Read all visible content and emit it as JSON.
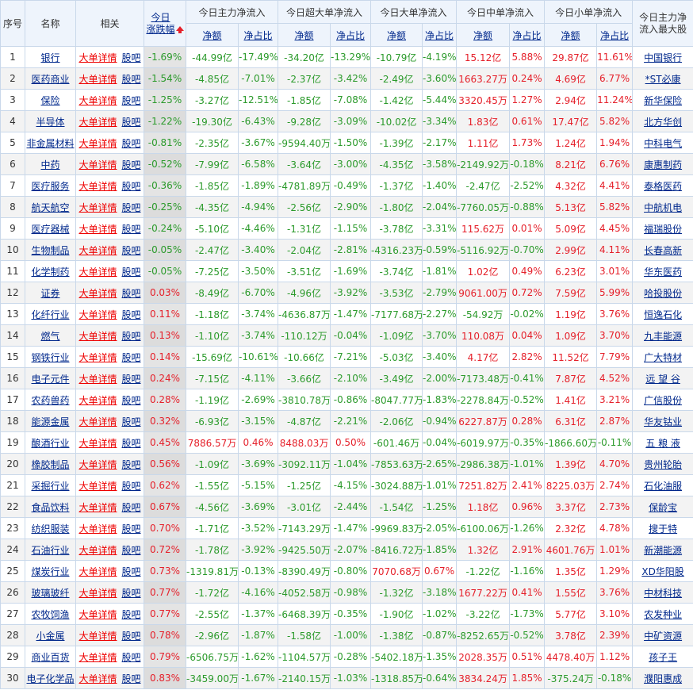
{
  "header": {
    "index": "序号",
    "name": "名称",
    "related": "相关",
    "change_line1": "今日",
    "change_line2": "涨跌幅",
    "sort_icon": "red-up-arrow-icon",
    "groups": [
      "今日主力净流入",
      "今日超大单净流入",
      "今日大单净流入",
      "今日中单净流入",
      "今日小单净流入"
    ],
    "top_stock_line1": "今日主力净",
    "top_stock_line2": "流入最大股",
    "sub_amount": "净额",
    "sub_ratio": "净占比"
  },
  "links": {
    "detail": "大单详情",
    "guba": "股吧"
  },
  "colors": {
    "up": "#e5202a",
    "down": "#2b9a2b",
    "link": "#00288c",
    "border": "#c9d8ea",
    "header_bg": "#eef4fc"
  },
  "rows": [
    {
      "idx": "1",
      "name": "银行",
      "chg": "-1.69%",
      "main": "-44.99亿",
      "main_r": "-17.49%",
      "xl": "-34.20亿",
      "xl_r": "-13.29%",
      "l": "-10.79亿",
      "l_r": "-4.19%",
      "m": "15.12亿",
      "m_r": "5.88%",
      "s": "29.87亿",
      "s_r": "11.61%",
      "top": "中国银行"
    },
    {
      "idx": "2",
      "name": "医药商业",
      "chg": "-1.54%",
      "main": "-4.85亿",
      "main_r": "-7.01%",
      "xl": "-2.37亿",
      "xl_r": "-3.42%",
      "l": "-2.49亿",
      "l_r": "-3.60%",
      "m": "1663.27万",
      "m_r": "0.24%",
      "s": "4.69亿",
      "s_r": "6.77%",
      "top": "*ST必康"
    },
    {
      "idx": "3",
      "name": "保险",
      "chg": "-1.25%",
      "main": "-3.27亿",
      "main_r": "-12.51%",
      "xl": "-1.85亿",
      "xl_r": "-7.08%",
      "l": "-1.42亿",
      "l_r": "-5.44%",
      "m": "3320.45万",
      "m_r": "1.27%",
      "s": "2.94亿",
      "s_r": "11.24%",
      "top": "新华保险"
    },
    {
      "idx": "4",
      "name": "半导体",
      "chg": "-1.22%",
      "main": "-19.30亿",
      "main_r": "-6.43%",
      "xl": "-9.28亿",
      "xl_r": "-3.09%",
      "l": "-10.02亿",
      "l_r": "-3.34%",
      "m": "1.83亿",
      "m_r": "0.61%",
      "s": "17.47亿",
      "s_r": "5.82%",
      "top": "北方华创"
    },
    {
      "idx": "5",
      "name": "非金属材料",
      "chg": "-0.81%",
      "main": "-2.35亿",
      "main_r": "-3.67%",
      "xl": "-9594.40万",
      "xl_r": "-1.50%",
      "l": "-1.39亿",
      "l_r": "-2.17%",
      "m": "1.11亿",
      "m_r": "1.73%",
      "s": "1.24亿",
      "s_r": "1.94%",
      "top": "中科电气"
    },
    {
      "idx": "6",
      "name": "中药",
      "chg": "-0.52%",
      "main": "-7.99亿",
      "main_r": "-6.58%",
      "xl": "-3.64亿",
      "xl_r": "-3.00%",
      "l": "-4.35亿",
      "l_r": "-3.58%",
      "m": "-2149.92万",
      "m_r": "-0.18%",
      "s": "8.21亿",
      "s_r": "6.76%",
      "top": "康惠制药"
    },
    {
      "idx": "7",
      "name": "医疗服务",
      "chg": "-0.36%",
      "main": "-1.85亿",
      "main_r": "-1.89%",
      "xl": "-4781.89万",
      "xl_r": "-0.49%",
      "l": "-1.37亿",
      "l_r": "-1.40%",
      "m": "-2.47亿",
      "m_r": "-2.52%",
      "s": "4.32亿",
      "s_r": "4.41%",
      "top": "泰格医药"
    },
    {
      "idx": "8",
      "name": "航天航空",
      "chg": "-0.25%",
      "main": "-4.35亿",
      "main_r": "-4.94%",
      "xl": "-2.56亿",
      "xl_r": "-2.90%",
      "l": "-1.80亿",
      "l_r": "-2.04%",
      "m": "-7760.05万",
      "m_r": "-0.88%",
      "s": "5.13亿",
      "s_r": "5.82%",
      "top": "中航机电"
    },
    {
      "idx": "9",
      "name": "医疗器械",
      "chg": "-0.24%",
      "main": "-5.10亿",
      "main_r": "-4.46%",
      "xl": "-1.31亿",
      "xl_r": "-1.15%",
      "l": "-3.78亿",
      "l_r": "-3.31%",
      "m": "115.62万",
      "m_r": "0.01%",
      "s": "5.09亿",
      "s_r": "4.45%",
      "top": "福瑞股份"
    },
    {
      "idx": "10",
      "name": "生物制品",
      "chg": "-0.05%",
      "main": "-2.47亿",
      "main_r": "-3.40%",
      "xl": "-2.04亿",
      "xl_r": "-2.81%",
      "l": "-4316.23万",
      "l_r": "-0.59%",
      "m": "-5116.92万",
      "m_r": "-0.70%",
      "s": "2.99亿",
      "s_r": "4.11%",
      "top": "长春高新"
    },
    {
      "idx": "11",
      "name": "化学制药",
      "chg": "-0.05%",
      "main": "-7.25亿",
      "main_r": "-3.50%",
      "xl": "-3.51亿",
      "xl_r": "-1.69%",
      "l": "-3.74亿",
      "l_r": "-1.81%",
      "m": "1.02亿",
      "m_r": "0.49%",
      "s": "6.23亿",
      "s_r": "3.01%",
      "top": "华东医药"
    },
    {
      "idx": "12",
      "name": "证券",
      "chg": "0.03%",
      "main": "-8.49亿",
      "main_r": "-6.70%",
      "xl": "-4.96亿",
      "xl_r": "-3.92%",
      "l": "-3.53亿",
      "l_r": "-2.79%",
      "m": "9061.00万",
      "m_r": "0.72%",
      "s": "7.59亿",
      "s_r": "5.99%",
      "top": "哈投股份"
    },
    {
      "idx": "13",
      "name": "化纤行业",
      "chg": "0.11%",
      "main": "-1.18亿",
      "main_r": "-3.74%",
      "xl": "-4636.87万",
      "xl_r": "-1.47%",
      "l": "-7177.68万",
      "l_r": "-2.27%",
      "m": "-54.92万",
      "m_r": "-0.02%",
      "s": "1.19亿",
      "s_r": "3.76%",
      "top": "恒逸石化"
    },
    {
      "idx": "14",
      "name": "燃气",
      "chg": "0.13%",
      "main": "-1.10亿",
      "main_r": "-3.74%",
      "xl": "-110.12万",
      "xl_r": "-0.04%",
      "l": "-1.09亿",
      "l_r": "-3.70%",
      "m": "110.08万",
      "m_r": "0.04%",
      "s": "1.09亿",
      "s_r": "3.70%",
      "top": "九丰能源"
    },
    {
      "idx": "15",
      "name": "钢铁行业",
      "chg": "0.14%",
      "main": "-15.69亿",
      "main_r": "-10.61%",
      "xl": "-10.66亿",
      "xl_r": "-7.21%",
      "l": "-5.03亿",
      "l_r": "-3.40%",
      "m": "4.17亿",
      "m_r": "2.82%",
      "s": "11.52亿",
      "s_r": "7.79%",
      "top": "广大特材"
    },
    {
      "idx": "16",
      "name": "电子元件",
      "chg": "0.24%",
      "main": "-7.15亿",
      "main_r": "-4.11%",
      "xl": "-3.66亿",
      "xl_r": "-2.10%",
      "l": "-3.49亿",
      "l_r": "-2.00%",
      "m": "-7173.48万",
      "m_r": "-0.41%",
      "s": "7.87亿",
      "s_r": "4.52%",
      "top": "远 望 谷"
    },
    {
      "idx": "17",
      "name": "农药兽药",
      "chg": "0.28%",
      "main": "-1.19亿",
      "main_r": "-2.69%",
      "xl": "-3810.78万",
      "xl_r": "-0.86%",
      "l": "-8047.77万",
      "l_r": "-1.83%",
      "m": "-2278.84万",
      "m_r": "-0.52%",
      "s": "1.41亿",
      "s_r": "3.21%",
      "top": "广信股份"
    },
    {
      "idx": "18",
      "name": "能源金属",
      "chg": "0.32%",
      "main": "-6.93亿",
      "main_r": "-3.15%",
      "xl": "-4.87亿",
      "xl_r": "-2.21%",
      "l": "-2.06亿",
      "l_r": "-0.94%",
      "m": "6227.87万",
      "m_r": "0.28%",
      "s": "6.31亿",
      "s_r": "2.87%",
      "top": "华友钴业"
    },
    {
      "idx": "19",
      "name": "酿酒行业",
      "chg": "0.45%",
      "main": "7886.57万",
      "main_r": "0.46%",
      "xl": "8488.03万",
      "xl_r": "0.50%",
      "l": "-601.46万",
      "l_r": "-0.04%",
      "m": "-6019.97万",
      "m_r": "-0.35%",
      "s": "-1866.60万",
      "s_r": "-0.11%",
      "top": "五 粮 液"
    },
    {
      "idx": "20",
      "name": "橡胶制品",
      "chg": "0.56%",
      "main": "-1.09亿",
      "main_r": "-3.69%",
      "xl": "-3092.11万",
      "xl_r": "-1.04%",
      "l": "-7853.63万",
      "l_r": "-2.65%",
      "m": "-2986.38万",
      "m_r": "-1.01%",
      "s": "1.39亿",
      "s_r": "4.70%",
      "top": "贵州轮胎"
    },
    {
      "idx": "21",
      "name": "采掘行业",
      "chg": "0.62%",
      "main": "-1.55亿",
      "main_r": "-5.15%",
      "xl": "-1.25亿",
      "xl_r": "-4.15%",
      "l": "-3024.88万",
      "l_r": "-1.01%",
      "m": "7251.82万",
      "m_r": "2.41%",
      "s": "8225.03万",
      "s_r": "2.74%",
      "top": "石化油服"
    },
    {
      "idx": "22",
      "name": "食品饮料",
      "chg": "0.67%",
      "main": "-4.56亿",
      "main_r": "-3.69%",
      "xl": "-3.01亿",
      "xl_r": "-2.44%",
      "l": "-1.54亿",
      "l_r": "-1.25%",
      "m": "1.18亿",
      "m_r": "0.96%",
      "s": "3.37亿",
      "s_r": "2.73%",
      "top": "保龄宝"
    },
    {
      "idx": "23",
      "name": "纺织服装",
      "chg": "0.70%",
      "main": "-1.71亿",
      "main_r": "-3.52%",
      "xl": "-7143.29万",
      "xl_r": "-1.47%",
      "l": "-9969.83万",
      "l_r": "-2.05%",
      "m": "-6100.06万",
      "m_r": "-1.26%",
      "s": "2.32亿",
      "s_r": "4.78%",
      "top": "搜于特"
    },
    {
      "idx": "24",
      "name": "石油行业",
      "chg": "0.72%",
      "main": "-1.78亿",
      "main_r": "-3.92%",
      "xl": "-9425.50万",
      "xl_r": "-2.07%",
      "l": "-8416.72万",
      "l_r": "-1.85%",
      "m": "1.32亿",
      "m_r": "2.91%",
      "s": "4601.76万",
      "s_r": "1.01%",
      "top": "新潮能源"
    },
    {
      "idx": "25",
      "name": "煤炭行业",
      "chg": "0.73%",
      "main": "-1319.81万",
      "main_r": "-0.13%",
      "xl": "-8390.49万",
      "xl_r": "-0.80%",
      "l": "7070.68万",
      "l_r": "0.67%",
      "m": "-1.22亿",
      "m_r": "-1.16%",
      "s": "1.35亿",
      "s_r": "1.29%",
      "top": "XD华阳股"
    },
    {
      "idx": "26",
      "name": "玻璃玻纤",
      "chg": "0.77%",
      "main": "-1.72亿",
      "main_r": "-4.16%",
      "xl": "-4052.58万",
      "xl_r": "-0.98%",
      "l": "-1.32亿",
      "l_r": "-3.18%",
      "m": "1677.22万",
      "m_r": "0.41%",
      "s": "1.55亿",
      "s_r": "3.76%",
      "top": "中材科技"
    },
    {
      "idx": "27",
      "name": "农牧饲渔",
      "chg": "0.77%",
      "main": "-2.55亿",
      "main_r": "-1.37%",
      "xl": "-6468.39万",
      "xl_r": "-0.35%",
      "l": "-1.90亿",
      "l_r": "-1.02%",
      "m": "-3.22亿",
      "m_r": "-1.73%",
      "s": "5.77亿",
      "s_r": "3.10%",
      "top": "农发种业"
    },
    {
      "idx": "28",
      "name": "小金属",
      "chg": "0.78%",
      "main": "-2.96亿",
      "main_r": "-1.87%",
      "xl": "-1.58亿",
      "xl_r": "-1.00%",
      "l": "-1.38亿",
      "l_r": "-0.87%",
      "m": "-8252.65万",
      "m_r": "-0.52%",
      "s": "3.78亿",
      "s_r": "2.39%",
      "top": "中矿资源"
    },
    {
      "idx": "29",
      "name": "商业百货",
      "chg": "0.79%",
      "main": "-6506.75万",
      "main_r": "-1.62%",
      "xl": "-1104.57万",
      "xl_r": "-0.28%",
      "l": "-5402.18万",
      "l_r": "-1.35%",
      "m": "2028.35万",
      "m_r": "0.51%",
      "s": "4478.40万",
      "s_r": "1.12%",
      "top": "孩子王"
    },
    {
      "idx": "30",
      "name": "电子化学品",
      "chg": "0.83%",
      "main": "-3459.00万",
      "main_r": "-1.67%",
      "xl": "-2140.15万",
      "xl_r": "-1.03%",
      "l": "-1318.85万",
      "l_r": "-0.64%",
      "m": "3834.24万",
      "m_r": "1.85%",
      "s": "-375.24万",
      "s_r": "-0.18%",
      "top": "濮阳惠成"
    }
  ]
}
